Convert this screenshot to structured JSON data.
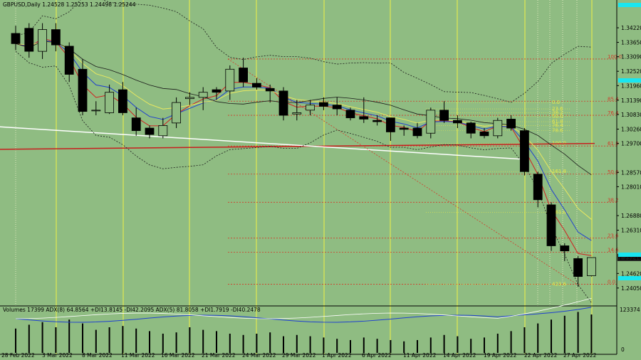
{
  "header": {
    "symbol_line": "GBPUSD,Daily  1.24528 1.25253 1.24498 1.25244"
  },
  "indicator_header": "Volumes 17399  ADX(8) 64.8564 +DI13.8145 -DI42.2095  ADX(5) 81.8058 +DI1.7919 -DI40.2478",
  "colors": {
    "background": "#8fbc82",
    "grid_yellow": "#f2f246",
    "fib_red": "#d23a2a",
    "fib_yellow": "#e8e84a",
    "trend_red": "#c81e1e",
    "trend_white": "#ffffff",
    "ma_blue": "#1f3fd0",
    "ma_red": "#d02020",
    "ma_yellow": "#e8e860",
    "ma_black": "#1a1a1a",
    "bull_body": "#8fbc82",
    "bear_body": "#000000",
    "price_tag": "#1a1a1a",
    "cyan_marker": "#19e6f0"
  },
  "chart_data": {
    "type": "candlestick",
    "symbol": "GBPUSD",
    "timeframe": "Daily",
    "last_price": "1.25244",
    "ylim": [
      1.2335,
      1.3525
    ],
    "y_ticks": [
      "1.34220",
      "1.33650",
      "1.33090",
      "1.32520",
      "1.31960",
      "1.31390",
      "1.30830",
      "1.30260",
      "1.29700",
      "1.28570",
      "1.28010",
      "1.26880",
      "1.26310",
      "1.25244",
      "1.24620",
      "1.24050"
    ],
    "x_ticks": [
      "28 Feb 2022",
      "3 Mar 2022",
      "8 Mar 2022",
      "11 Mar 2022",
      "16 Mar 2022",
      "21 Mar 2022",
      "24 Mar 2022",
      "29 Mar 2022",
      "1 Apr 2022",
      "6 Apr 2022",
      "11 Apr 2022",
      "14 Apr 2022",
      "19 Apr 2022",
      "22 Apr 2022",
      "27 Apr 2022"
    ],
    "candles": [
      [
        1.34,
        1.343,
        1.3335,
        1.336
      ],
      [
        1.342,
        1.344,
        1.3305,
        1.333
      ],
      [
        1.333,
        1.344,
        1.33,
        1.3415
      ],
      [
        1.3415,
        1.344,
        1.333,
        1.3355
      ],
      [
        1.335,
        1.3365,
        1.321,
        1.324
      ],
      [
        1.326,
        1.33,
        1.308,
        1.3095
      ],
      [
        1.31,
        1.3135,
        1.308,
        1.31
      ],
      [
        1.309,
        1.32,
        1.3085,
        1.317
      ],
      [
        1.318,
        1.321,
        1.308,
        1.309
      ],
      [
        1.307,
        1.311,
        1.3,
        1.302
      ],
      [
        1.303,
        1.304,
        1.299,
        1.3005
      ],
      [
        1.3,
        1.307,
        1.299,
        1.304
      ],
      [
        1.305,
        1.315,
        1.303,
        1.313
      ],
      [
        1.3145,
        1.317,
        1.312,
        1.315
      ],
      [
        1.315,
        1.319,
        1.31,
        1.317
      ],
      [
        1.318,
        1.319,
        1.314,
        1.317
      ],
      [
        1.3175,
        1.3275,
        1.314,
        1.326
      ],
      [
        1.3265,
        1.3305,
        1.319,
        1.321
      ],
      [
        1.3205,
        1.3225,
        1.318,
        1.319
      ],
      [
        1.3185,
        1.32,
        1.313,
        1.3175
      ],
      [
        1.3175,
        1.319,
        1.306,
        1.308
      ],
      [
        1.3085,
        1.314,
        1.306,
        1.309
      ],
      [
        1.31,
        1.314,
        1.308,
        1.312
      ],
      [
        1.313,
        1.315,
        1.31,
        1.3115
      ],
      [
        1.312,
        1.315,
        1.308,
        1.3105
      ],
      [
        1.31,
        1.311,
        1.306,
        1.307
      ],
      [
        1.3075,
        1.315,
        1.305,
        1.3065
      ],
      [
        1.306,
        1.308,
        1.304,
        1.3055
      ],
      [
        1.307,
        1.307,
        1.298,
        1.3015
      ],
      [
        1.303,
        1.304,
        1.3,
        1.3025
      ],
      [
        1.303,
        1.305,
        1.299,
        1.3
      ],
      [
        1.301,
        1.311,
        1.299,
        1.31
      ],
      [
        1.31,
        1.3135,
        1.305,
        1.306
      ],
      [
        1.306,
        1.308,
        1.303,
        1.305
      ],
      [
        1.305,
        1.3055,
        1.299,
        1.301
      ],
      [
        1.3015,
        1.303,
        1.299,
        1.3
      ],
      [
        1.3,
        1.307,
        1.299,
        1.306
      ],
      [
        1.3065,
        1.308,
        1.302,
        1.303
      ],
      [
        1.302,
        1.303,
        1.2845,
        1.286
      ],
      [
        1.285,
        1.286,
        1.272,
        1.275
      ],
      [
        1.273,
        1.274,
        1.255,
        1.257
      ],
      [
        1.257,
        1.258,
        1.251,
        1.255
      ],
      [
        1.252,
        1.253,
        1.241,
        1.245
      ],
      [
        1.2453,
        1.2525,
        1.245,
        1.2524
      ]
    ],
    "fib_levels": [
      {
        "label": "100.0",
        "price": 1.33
      },
      {
        "label": "85.4",
        "price": 1.3135
      },
      {
        "label": "76.4",
        "price": 1.308
      },
      {
        "label": "61.8",
        "price": 1.296
      },
      {
        "label": "50.0",
        "price": 1.285
      },
      {
        "label": "38.2",
        "price": 1.274
      },
      {
        "label": "23.6",
        "price": 1.26
      },
      {
        "label": "14.6",
        "price": 1.2545
      },
      {
        "label": "0.0",
        "price": 1.242
      }
    ],
    "fib_ext_labels": [
      "0.0",
      "23.6",
      "38.2",
      "50.0",
      "61.8",
      "76.4",
      "78.6",
      "100.0",
      "161.8",
      "261.8",
      "423.6"
    ],
    "volume_label": "123374",
    "volume_zero": "0"
  }
}
